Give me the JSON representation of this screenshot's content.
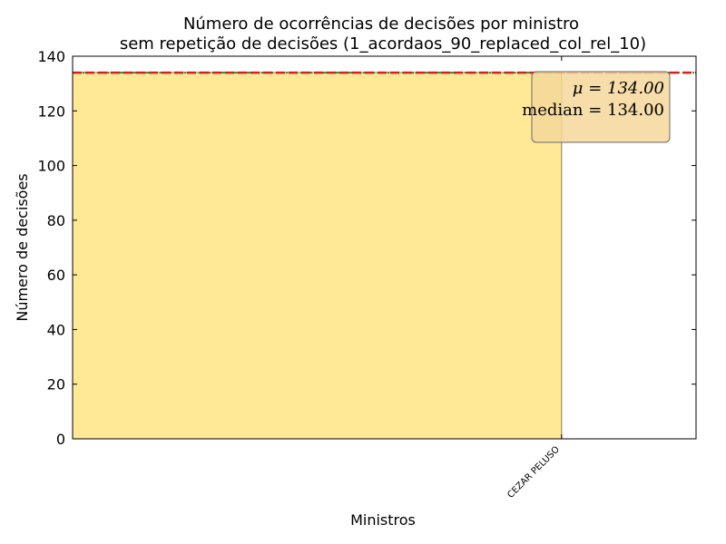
{
  "chart_data": {
    "type": "bar",
    "title_line1": "Número de ocorrências de decisões por ministro",
    "title_line2": "sem repetição de decisões (1_acordaos_90_replaced_col_rel_10)",
    "xlabel": "Ministros",
    "ylabel": "Número de decisões",
    "categories": [
      "CEZAR PELUSO"
    ],
    "values": [
      134
    ],
    "ylim": [
      0,
      140
    ],
    "yticks": [
      "0",
      "20",
      "40",
      "60",
      "80",
      "100",
      "120",
      "140"
    ],
    "mean": 134.0,
    "median": 134.0,
    "mean_label": "μ = 134.00",
    "median_label": "median = 134.00",
    "bar_color": "#ffe896",
    "bar_edge_color": "#8b7d4b",
    "mean_line_color": "#2e8b2e",
    "median_line_color": "#d62020",
    "stats_box_color": "#f5d79a",
    "legend_placement": "top-right",
    "grid": false
  }
}
